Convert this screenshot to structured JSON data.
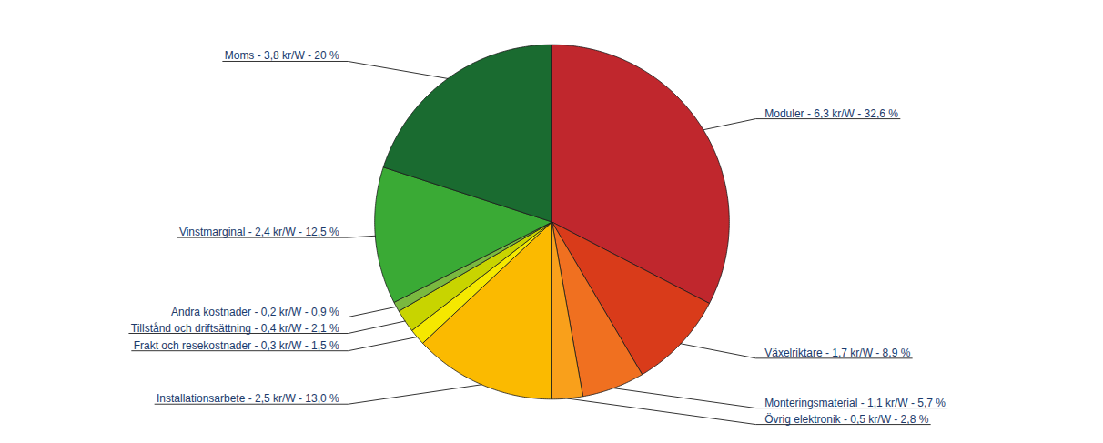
{
  "chart_data": {
    "type": "pie",
    "categories": [
      "Moduler - 6,3 kr/W - 32,6 %",
      "Växelriktare - 1,7 kr/W - 8,9 %",
      "Monteringsmaterial - 1,1 kr/W - 5,7 %",
      "Övrig elektronik - 0,5 kr/W - 2,8 %",
      "Installationsarbete - 2,5 kr/W - 13,0 %",
      "Frakt och resekostnader - 0,3 kr/W - 1,5 %",
      "Tillstånd och driftsättning - 0,4 kr/W - 2,1 %",
      "Andra kostnader - 0,2 kr/W - 0,9 %",
      "Vinstmarginal - 2,4 kr/W - 12,5 %",
      "Moms - 3,8 kr/W - 20 %"
    ],
    "values": [
      32.6,
      8.9,
      5.7,
      2.8,
      13.0,
      1.5,
      2.1,
      0.9,
      12.5,
      20.0
    ],
    "colors": [
      "#C0272D",
      "#D93B1A",
      "#F07020",
      "#F9A01B",
      "#FBBA00",
      "#F5E800",
      "#C8D400",
      "#7AB840",
      "#3AAA35",
      "#1A6B30"
    ]
  }
}
